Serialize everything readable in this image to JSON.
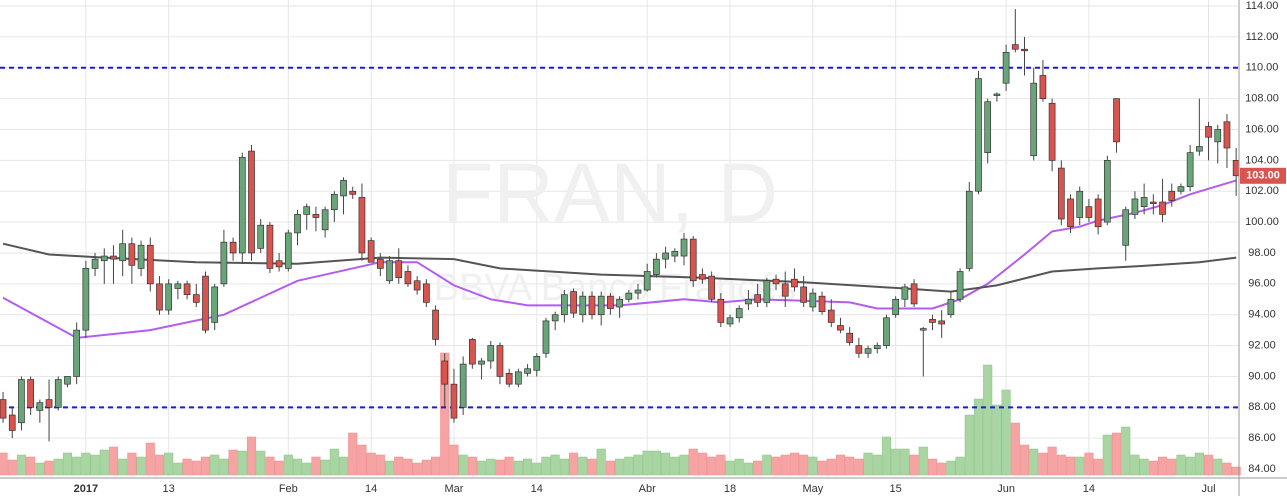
{
  "chart_data": {
    "type": "candlestick",
    "watermark": "FRAN, D",
    "watermark_subtitle": "BBVA Banco Francés",
    "open": [
      88.5,
      87.5,
      87,
      89.8,
      87.8,
      88.5,
      88,
      89.5,
      90,
      93,
      97,
      97.5,
      97.8,
      97.5,
      98.6,
      97,
      98.5,
      96,
      94.3,
      95.7,
      96,
      95.3,
      96.5,
      93.5,
      96,
      98.7,
      98,
      104.6,
      98.3,
      99.8,
      97.5,
      97,
      99.3,
      100.5,
      100.5,
      99.5,
      100.8,
      101.7,
      102,
      101.6,
      98.8,
      97.6,
      96.2,
      97.5,
      96.8,
      96.2,
      96,
      94.3,
      91,
      89.5,
      88,
      92.4,
      90.8,
      91,
      92,
      90.2,
      89.5,
      90.2,
      90.4,
      91.5,
      93.6,
      94,
      95.5,
      94,
      95.2,
      94,
      95.2,
      94.5,
      95,
      95.4,
      95.6,
      96.6,
      97.6,
      97.8,
      97.8,
      98.9,
      96.6,
      96.5,
      95,
      93.4,
      93.8,
      94.7,
      95.3,
      94.8,
      96.3,
      96,
      96.3,
      95.8,
      94.5,
      95.2,
      94.3,
      93.3,
      92.8,
      92,
      91.5,
      91.8,
      92,
      94,
      95,
      96,
      93,
      93.7,
      93.6,
      94,
      95,
      97,
      102,
      104.5,
      108.2,
      109,
      111.5,
      111.2,
      104.3,
      109.5,
      107.7,
      103.5,
      101.5,
      100.3,
      101,
      101.5,
      100,
      108,
      98.5,
      100.5,
      101,
      101.3,
      101.3,
      102,
      102,
      102.3,
      104.6,
      106.2,
      105.2,
      106.5,
      104
    ],
    "high": [
      89,
      88,
      90,
      90,
      88.5,
      89.8,
      90,
      90,
      93.5,
      97.5,
      98,
      98.3,
      98.5,
      99.5,
      99,
      98.8,
      99,
      96.5,
      96.3,
      96.2,
      96.2,
      96,
      96.8,
      96,
      99.5,
      99,
      104.5,
      105,
      100.2,
      100,
      98,
      99.5,
      100.8,
      101.2,
      101,
      101,
      102,
      102.9,
      102.3,
      102.5,
      99,
      98,
      97.8,
      98.3,
      97.2,
      96.5,
      96.3,
      94.6,
      91.5,
      90.5,
      91.3,
      92.5,
      91.2,
      92.3,
      92.2,
      90.5,
      90.5,
      90.8,
      91.5,
      93.8,
      94.2,
      95.6,
      95.7,
      95.5,
      95.5,
      95.5,
      95.4,
      95.2,
      95.6,
      96,
      97.3,
      98,
      98.4,
      98.3,
      99.3,
      99.1,
      97,
      96.8,
      95.4,
      94,
      94.6,
      95.6,
      96,
      96.4,
      96.6,
      96.8,
      97,
      96.5,
      95.7,
      95.5,
      95,
      93.8,
      93.2,
      92.5,
      92,
      92.2,
      94,
      95.2,
      96,
      96.3,
      93.2,
      94,
      94.3,
      95.5,
      97,
      102.6,
      109.8,
      108,
      108.4,
      111.5,
      113.8,
      112,
      110,
      110.5,
      108,
      104,
      101.8,
      102.3,
      101.5,
      101.8,
      104.3,
      108,
      101,
      102,
      102.5,
      101.8,
      102.8,
      102.5,
      102.5,
      105,
      108,
      106.5,
      106.3,
      107,
      104.8
    ],
    "low": [
      87,
      86,
      86.5,
      87.5,
      87,
      85.8,
      87.8,
      89.3,
      89.5,
      92.5,
      96.5,
      96,
      96,
      96.5,
      96,
      96.5,
      95.5,
      94,
      94,
      95,
      95,
      94.5,
      92.8,
      93,
      95.8,
      97.5,
      97.3,
      97.5,
      98,
      96.7,
      96.8,
      96.8,
      98.5,
      99.5,
      99.4,
      99,
      100,
      100.5,
      101.5,
      97.5,
      97.5,
      96.5,
      96,
      96,
      95.8,
      95.3,
      94.5,
      92,
      88,
      87,
      87.5,
      90.5,
      89.8,
      90.5,
      89.5,
      89.3,
      89.3,
      90,
      90,
      91.2,
      93,
      93.5,
      93.8,
      93.5,
      93.7,
      93.3,
      94,
      93.8,
      94.8,
      95,
      95.5,
      96.4,
      97,
      97.4,
      97.2,
      95.8,
      96,
      94.8,
      93.2,
      93.2,
      93.5,
      94.3,
      94.5,
      94.5,
      95.6,
      94.5,
      95.5,
      94.5,
      94.2,
      94,
      93.2,
      92.8,
      92,
      91.2,
      91.2,
      91.5,
      91.8,
      93.8,
      94.5,
      94.5,
      90,
      93,
      92.5,
      93.8,
      94.8,
      96.8,
      101.8,
      103.8,
      107.8,
      108.5,
      111,
      109.5,
      104,
      107.8,
      103.3,
      99.8,
      99.3,
      99.8,
      100,
      99.2,
      99.8,
      104.5,
      97.5,
      100.2,
      100.5,
      100.5,
      100,
      101,
      101.8,
      102,
      104.3,
      104,
      103.8,
      103.5,
      101.7
    ],
    "close": [
      87.3,
      86.5,
      89.8,
      88,
      88.3,
      88,
      89.8,
      90,
      93,
      97,
      97.6,
      97.8,
      97.6,
      98.6,
      97.2,
      98.5,
      96,
      94.3,
      96,
      96,
      95.3,
      94.8,
      93,
      95.8,
      98.7,
      98,
      104.2,
      98,
      99.8,
      97,
      97.1,
      99.3,
      100.5,
      101,
      100.3,
      100.8,
      101.8,
      102.7,
      101.8,
      98,
      97.4,
      97,
      97.5,
      96.4,
      96,
      95.6,
      94.8,
      92.4,
      89.5,
      87.3,
      90.8,
      90.8,
      91,
      92,
      90,
      89.5,
      90.3,
      90.5,
      91.3,
      93.6,
      94,
      95.3,
      94.1,
      95.2,
      94,
      95.2,
      94.4,
      95,
      95.4,
      95.6,
      96.8,
      97.6,
      98,
      98.1,
      98.9,
      96.2,
      96.3,
      95,
      93.5,
      93.8,
      94.4,
      95,
      94.8,
      96.2,
      96,
      95.2,
      95.8,
      94.8,
      95.4,
      94.2,
      93.5,
      93,
      92.2,
      91.5,
      91.8,
      92,
      93.8,
      95,
      95.8,
      94.7,
      93.1,
      93.5,
      93.4,
      95,
      96.8,
      102,
      109.3,
      107.8,
      108.3,
      111,
      111.2,
      111.1,
      109,
      108,
      104,
      100.2,
      99.7,
      102,
      100.3,
      99.7,
      104,
      105.2,
      100.8,
      101.5,
      101.6,
      101.2,
      100.5,
      101.4,
      102.3,
      104.5,
      104.9,
      105.5,
      106,
      104.8,
      103
    ],
    "volume": [
      22,
      15,
      20,
      18,
      12,
      14,
      16,
      22,
      18,
      22,
      20,
      25,
      28,
      16,
      22,
      18,
      32,
      20,
      22,
      12,
      16,
      14,
      18,
      20,
      16,
      25,
      24,
      38,
      24,
      18,
      14,
      20,
      16,
      12,
      18,
      15,
      26,
      18,
      42,
      30,
      22,
      20,
      14,
      18,
      16,
      12,
      15,
      18,
      122,
      30,
      20,
      18,
      14,
      16,
      15,
      18,
      14,
      16,
      12,
      18,
      20,
      16,
      22,
      18,
      16,
      26,
      14,
      16,
      18,
      20,
      24,
      24,
      22,
      18,
      20,
      26,
      22,
      18,
      20,
      14,
      16,
      12,
      14,
      20,
      18,
      20,
      22,
      20,
      18,
      14,
      16,
      20,
      18,
      16,
      22,
      20,
      38,
      26,
      26,
      20,
      28,
      16,
      12,
      14,
      18,
      60,
      76,
      110,
      70,
      85,
      52,
      30,
      26,
      22,
      28,
      20,
      18,
      18,
      22,
      16,
      40,
      42,
      48,
      20,
      16,
      14,
      18,
      16,
      20,
      18,
      22,
      20,
      16,
      12,
      8
    ],
    "up_color": "#6aa57a",
    "down_color": "#d9534f",
    "up_volume_color": "#a8d5a2",
    "down_volume_color": "#f5a3a3",
    "series": [
      {
        "color": "#b35cf0",
        "x": [
          0,
          8,
          16,
          24,
          32,
          41,
          45,
          49,
          53,
          57,
          63,
          67,
          74,
          78,
          82,
          87,
          92,
          95,
          101,
          104,
          107,
          111,
          114,
          117,
          119,
          123,
          126,
          129,
          134
        ],
        "values": [
          95.1,
          92.5,
          93,
          94,
          96.2,
          97.4,
          97.4,
          95.9,
          95,
          94.6,
          94.6,
          94.6,
          95,
          94.8,
          95,
          94.9,
          94.8,
          94.4,
          94.4,
          95,
          96,
          97.9,
          99.4,
          99.7,
          100.1,
          100.6,
          101.1,
          101.8,
          102.7
        ]
      },
      {
        "color": "#555555",
        "x": [
          0,
          5,
          11,
          21,
          32,
          41,
          49,
          54,
          65,
          76,
          87,
          98,
          103,
          108,
          114,
          119,
          125,
          130,
          134
        ],
        "values": [
          98.6,
          97.9,
          97.7,
          97.4,
          97.3,
          97.7,
          97.6,
          97,
          96.6,
          96.4,
          96.1,
          95.7,
          95.5,
          95.9,
          96.8,
          97,
          97.2,
          97.4,
          97.7
        ]
      }
    ],
    "hlines": [
      {
        "value": 110,
        "color": "#1a1adb"
      },
      {
        "value": 88,
        "color": "#1a1adb"
      }
    ],
    "last_label": "103.00",
    "ylim": [
      83.55,
      114.39
    ],
    "yticks": [
      {
        "value": 84,
        "label": "84.00"
      },
      {
        "value": 86,
        "label": "86.00"
      },
      {
        "value": 88,
        "label": "88.00"
      },
      {
        "value": 90,
        "label": "90.00"
      },
      {
        "value": 92,
        "label": "92.00"
      },
      {
        "value": 94,
        "label": "94.00"
      },
      {
        "value": 96,
        "label": "96.00"
      },
      {
        "value": 98,
        "label": "98.00"
      },
      {
        "value": 100,
        "label": "100.00"
      },
      {
        "value": 102,
        "label": "102.00"
      },
      {
        "value": 104,
        "label": "104.00"
      },
      {
        "value": 106,
        "label": "106.00"
      },
      {
        "value": 108,
        "label": "108.00"
      },
      {
        "value": 110,
        "label": "110.00"
      },
      {
        "value": 112,
        "label": "112.00"
      },
      {
        "value": 114,
        "label": "114.00"
      }
    ],
    "xlim": [
      -0.33,
      134.2
    ],
    "xticks": [
      {
        "value": 9,
        "label": "2017"
      },
      {
        "value": 18,
        "label": "13"
      },
      {
        "value": 31,
        "label": "Feb"
      },
      {
        "value": 40,
        "label": "14"
      },
      {
        "value": 49,
        "label": "Mar"
      },
      {
        "value": 58,
        "label": "14"
      },
      {
        "value": 70,
        "label": "Abr"
      },
      {
        "value": 79,
        "label": "18"
      },
      {
        "value": 88,
        "label": "May"
      },
      {
        "value": 97,
        "label": "15"
      },
      {
        "value": 109,
        "label": "Jun"
      },
      {
        "value": 118,
        "label": "14"
      },
      {
        "value": 131,
        "label": "Jul"
      }
    ],
    "volume_ylim": [
      0,
      140
    ],
    "grid": true
  }
}
